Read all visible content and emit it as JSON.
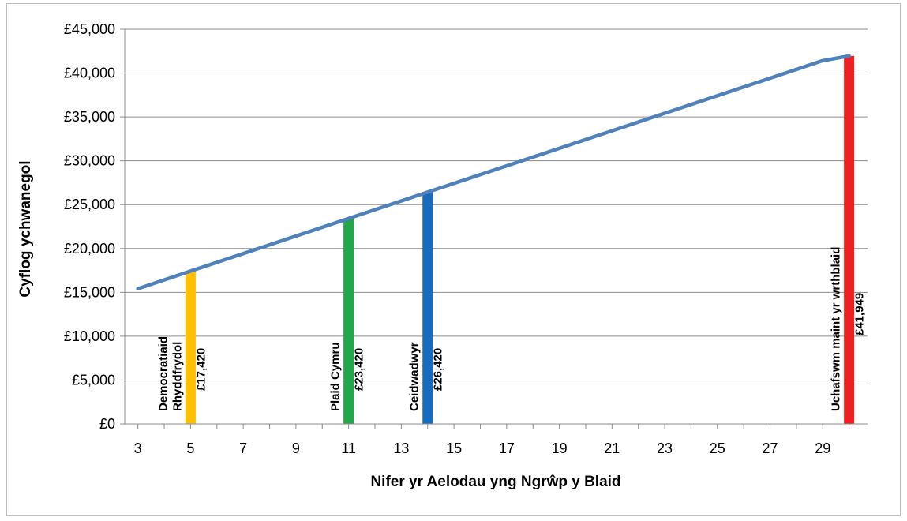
{
  "chart_data": {
    "type": "line",
    "xlabel": "Nifer yr Aelodau yng Ngrŵp y Blaid",
    "ylabel": "Cyflog ychwanegol",
    "xlim": [
      2.5,
      30.7
    ],
    "ylim": [
      0,
      45000
    ],
    "x_ticks": [
      3,
      5,
      7,
      9,
      11,
      13,
      15,
      17,
      19,
      21,
      23,
      25,
      27,
      29
    ],
    "y_ticks": [
      {
        "value": 0,
        "label": "£0"
      },
      {
        "value": 5000,
        "label": "£5,000"
      },
      {
        "value": 10000,
        "label": "£10,000"
      },
      {
        "value": 15000,
        "label": "£15,000"
      },
      {
        "value": 20000,
        "label": "£20,000"
      },
      {
        "value": 25000,
        "label": "£25,000"
      },
      {
        "value": 30000,
        "label": "£30,000"
      },
      {
        "value": 35000,
        "label": "£35,000"
      },
      {
        "value": 40000,
        "label": "£40,000"
      },
      {
        "value": 45000,
        "label": "£45,000"
      }
    ],
    "grid": true,
    "series": [
      {
        "color": "#4f81bd",
        "x": [
          3,
          5,
          11,
          14,
          29,
          30
        ],
        "y": [
          15420,
          17420,
          23420,
          26420,
          41420,
          41949
        ]
      }
    ],
    "bars": [
      {
        "x": 5,
        "value": 17420,
        "color": "#ffc000",
        "name_lines": [
          "Democratiaid",
          "Rhyddfrydol"
        ],
        "value_label": "£17,420"
      },
      {
        "x": 11,
        "value": 23420,
        "color": "#22a84a",
        "name_lines": [
          "Plaid Cymru"
        ],
        "value_label": "£23,420"
      },
      {
        "x": 14,
        "value": 26420,
        "color": "#1a6bbd",
        "name_lines": [
          "Ceidwadwyr"
        ],
        "value_label": "£26,420"
      },
      {
        "x": 30,
        "value": 41949,
        "color": "#ee2024",
        "name_lines": [
          "Uchafswm maint yr wrthblaid"
        ],
        "value_label": "£41,949"
      }
    ]
  }
}
